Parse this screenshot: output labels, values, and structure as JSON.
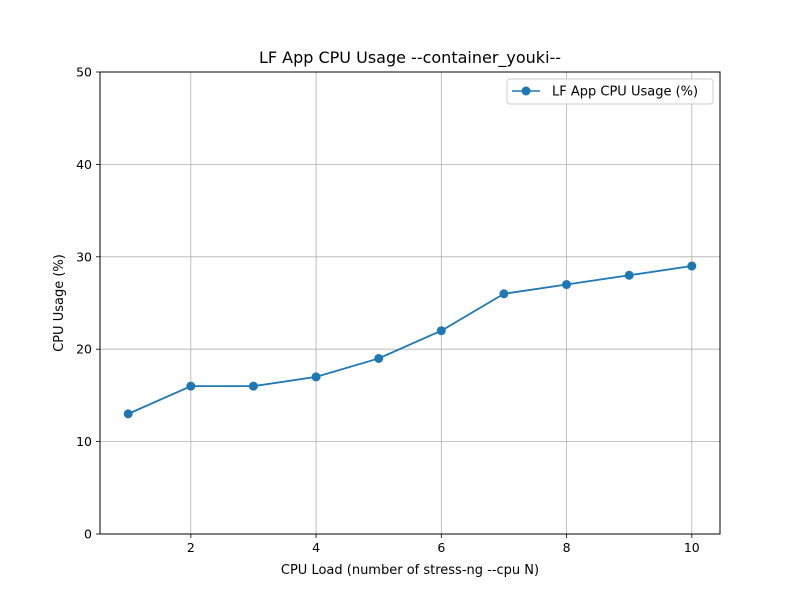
{
  "chart_data": {
    "type": "line",
    "title": "LF App CPU Usage --container_youki--",
    "xlabel": "CPU Load (number of stress-ng --cpu N)",
    "ylabel": "CPU Usage (%)",
    "xlim": [
      0.55,
      10.45
    ],
    "ylim": [
      0,
      50
    ],
    "xticks": [
      2,
      4,
      6,
      8,
      10
    ],
    "yticks": [
      0,
      10,
      20,
      30,
      40,
      50
    ],
    "grid": true,
    "legend_position": "top-right",
    "series": [
      {
        "name": "LF App CPU Usage (%)",
        "color": "#1f77b4",
        "marker": "circle",
        "x": [
          1,
          2,
          3,
          4,
          5,
          6,
          7,
          8,
          9,
          10
        ],
        "y": [
          13,
          16,
          16,
          17,
          19,
          22,
          26,
          27,
          28,
          29
        ]
      }
    ]
  }
}
